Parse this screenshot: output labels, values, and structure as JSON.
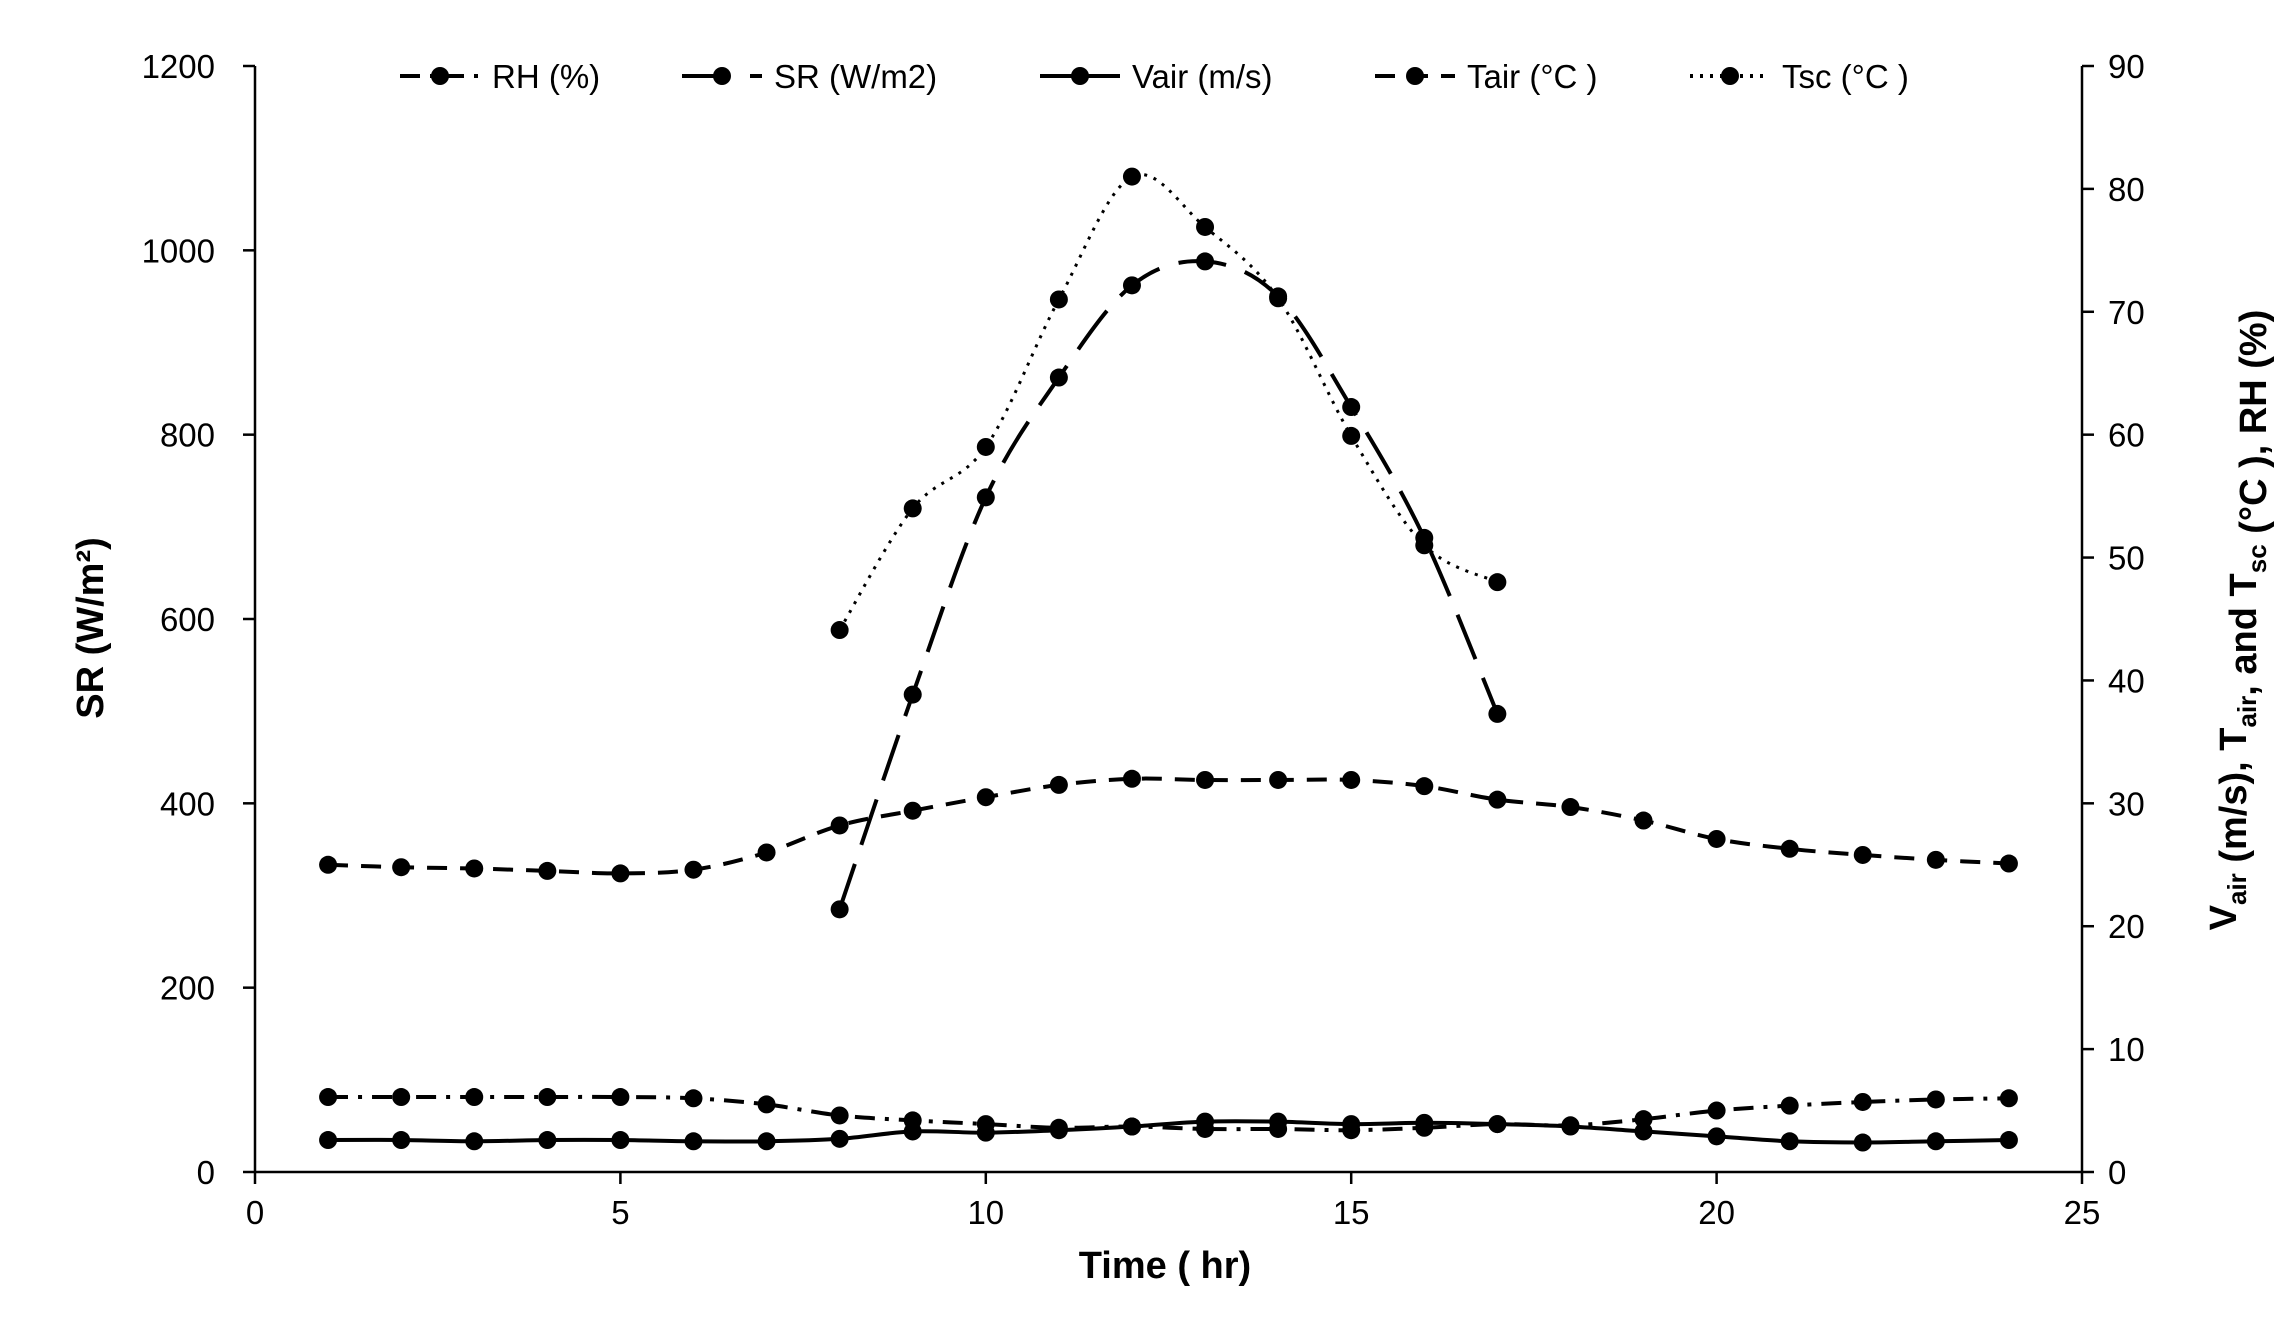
{
  "chart_data": {
    "type": "line",
    "xlabel": "Time ( hr)",
    "ylabel_left": "SR (W/m²)",
    "ylabel_right": {
      "parts": [
        {
          "text": "V",
          "sub": "air"
        },
        {
          "text": " (m/s), T",
          "sub": "air"
        },
        {
          "text": ", and T",
          "sub": "sc"
        },
        {
          "text": " (°C ), RH (%)",
          "sub": ""
        }
      ]
    },
    "xlim": [
      0,
      25
    ],
    "ylim_left": [
      0,
      1200
    ],
    "ylim_right": [
      0,
      90
    ],
    "x_ticks": [
      0,
      5,
      10,
      15,
      20,
      25
    ],
    "y_left_ticks": [
      0,
      200,
      400,
      600,
      800,
      1000,
      1200
    ],
    "y_right_ticks": [
      0,
      10,
      20,
      30,
      40,
      50,
      60,
      70,
      80,
      90
    ],
    "grid": false,
    "legend_position": "top",
    "series": [
      {
        "name": "RH (%)",
        "axis": "right",
        "dash": "dashdot",
        "color": "#000000",
        "x": [
          1,
          2,
          3,
          4,
          5,
          6,
          7,
          8,
          9,
          10,
          11,
          12,
          13,
          14,
          15,
          16,
          17,
          18,
          19,
          20,
          21,
          22,
          23,
          24
        ],
        "values": [
          6.1,
          6.1,
          6.1,
          6.1,
          6.1,
          6.0,
          5.5,
          4.6,
          4.2,
          3.9,
          3.6,
          3.7,
          3.5,
          3.5,
          3.4,
          3.6,
          3.9,
          3.8,
          4.3,
          5.0,
          5.4,
          5.7,
          5.9,
          6.0
        ]
      },
      {
        "name": "SR (W/m2)",
        "axis": "left",
        "dash": "longdash",
        "color": "#000000",
        "x": [
          8,
          9,
          10,
          11,
          12,
          13,
          14,
          15,
          16,
          17
        ],
        "values": [
          285,
          518,
          732,
          862,
          962,
          988,
          950,
          830,
          688,
          497
        ]
      },
      {
        "name": "Vair (m/s)",
        "axis": "right",
        "dash": "solid",
        "color": "#000000",
        "x": [
          1,
          2,
          3,
          4,
          5,
          6,
          7,
          8,
          9,
          10,
          11,
          12,
          13,
          14,
          15,
          16,
          17,
          18,
          19,
          20,
          21,
          22,
          23,
          24
        ],
        "values": [
          2.6,
          2.6,
          2.5,
          2.6,
          2.6,
          2.5,
          2.5,
          2.7,
          3.3,
          3.2,
          3.4,
          3.7,
          4.1,
          4.1,
          3.9,
          4.0,
          3.9,
          3.7,
          3.3,
          2.9,
          2.5,
          2.4,
          2.5,
          2.6
        ]
      },
      {
        "name": "Tair (°C )",
        "axis": "right",
        "dash": "dash",
        "color": "#000000",
        "x": [
          1,
          2,
          3,
          4,
          5,
          6,
          7,
          8,
          9,
          10,
          11,
          12,
          13,
          14,
          15,
          16,
          17,
          18,
          19,
          20,
          21,
          22,
          23,
          24
        ],
        "values": [
          25.0,
          24.8,
          24.7,
          24.5,
          24.3,
          24.6,
          26.0,
          28.2,
          29.4,
          30.5,
          31.5,
          32.0,
          31.9,
          31.9,
          31.9,
          31.4,
          30.3,
          29.7,
          28.6,
          27.1,
          26.3,
          25.8,
          25.4,
          25.1
        ]
      },
      {
        "name": "Tsc (°C )",
        "axis": "right",
        "dash": "dotted",
        "color": "#000000",
        "x": [
          8,
          9,
          10,
          11,
          12,
          13,
          14,
          15,
          16,
          17
        ],
        "values": [
          44.1,
          54.0,
          59.0,
          71.0,
          81.0,
          76.9,
          71.1,
          59.9,
          51.0,
          48.0
        ]
      }
    ]
  }
}
